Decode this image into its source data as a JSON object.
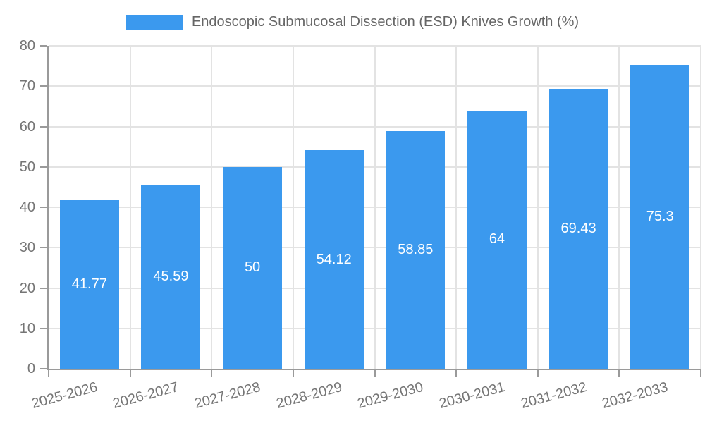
{
  "chart_data": {
    "type": "bar",
    "title": "Endoscopic Submucosal Dissection (ESD) Knives Growth (%)",
    "legend": {
      "position": "top",
      "label": "Endoscopic Submucosal Dissection (ESD) Knives Growth (%)"
    },
    "categories": [
      "2025-2026",
      "2026-2027",
      "2027-2028",
      "2028-2029",
      "2029-2030",
      "2030-2031",
      "2031-2032",
      "2032-2033"
    ],
    "values": [
      41.77,
      45.59,
      50,
      54.12,
      58.85,
      64,
      69.43,
      75.3
    ],
    "value_labels": [
      "41.77",
      "45.59",
      "50",
      "54.12",
      "58.85",
      "64",
      "69.43",
      "75.3"
    ],
    "xlabel": "",
    "ylabel": "",
    "ylim": [
      0,
      80
    ],
    "yticks": [
      0,
      10,
      20,
      30,
      40,
      50,
      60,
      70,
      80
    ],
    "grid": true,
    "colors": {
      "bar": "#3b99ee",
      "value_label": "#ffffff",
      "axis": "#9a9a9a",
      "gridline": "#e3e3e3",
      "tick_label": "#757575",
      "legend_text": "#666666"
    }
  }
}
